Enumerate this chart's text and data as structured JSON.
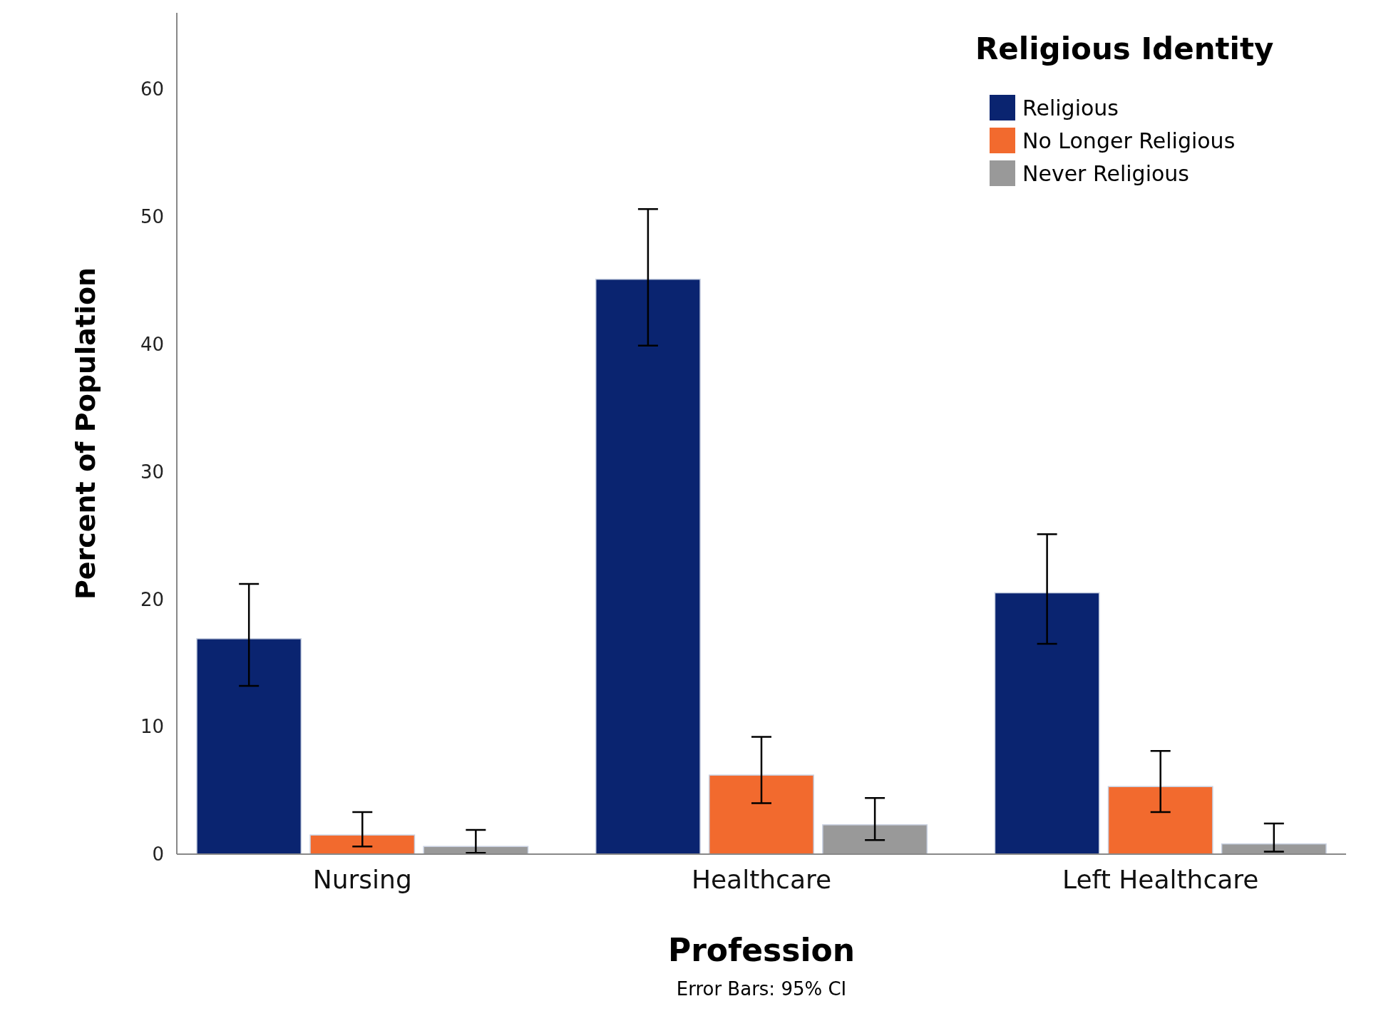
{
  "chart_data": {
    "type": "bar",
    "xlabel": "Profession",
    "ylabel": "Percent of Population",
    "legend_title": "Religious Identity",
    "legend": "top right",
    "categories": [
      "Nursing",
      "Healthcare",
      "Left Healthcare"
    ],
    "series": [
      {
        "name": "Religious",
        "color": "#0a2470",
        "values": [
          16.9,
          45.1,
          20.5
        ],
        "errors": [
          [
            13.2,
            21.2
          ],
          [
            39.9,
            50.6
          ],
          [
            16.5,
            25.1
          ]
        ]
      },
      {
        "name": "No Longer Religious",
        "color": "#f26a2e",
        "values": [
          1.5,
          6.2,
          5.3
        ],
        "errors": [
          [
            0.6,
            3.3
          ],
          [
            4.0,
            9.2
          ],
          [
            3.3,
            8.1
          ]
        ]
      },
      {
        "name": "Never Religious",
        "color": "#999999",
        "values": [
          0.6,
          2.3,
          0.8
        ],
        "errors": [
          [
            0.1,
            1.9
          ],
          [
            1.1,
            4.4
          ],
          [
            0.2,
            2.4
          ]
        ]
      }
    ],
    "ylim": [
      0,
      66
    ],
    "yticks": [
      0,
      10,
      20,
      30,
      40,
      50,
      60
    ],
    "grid": false,
    "annotations": [
      "Error Bars: 95% CI"
    ]
  }
}
